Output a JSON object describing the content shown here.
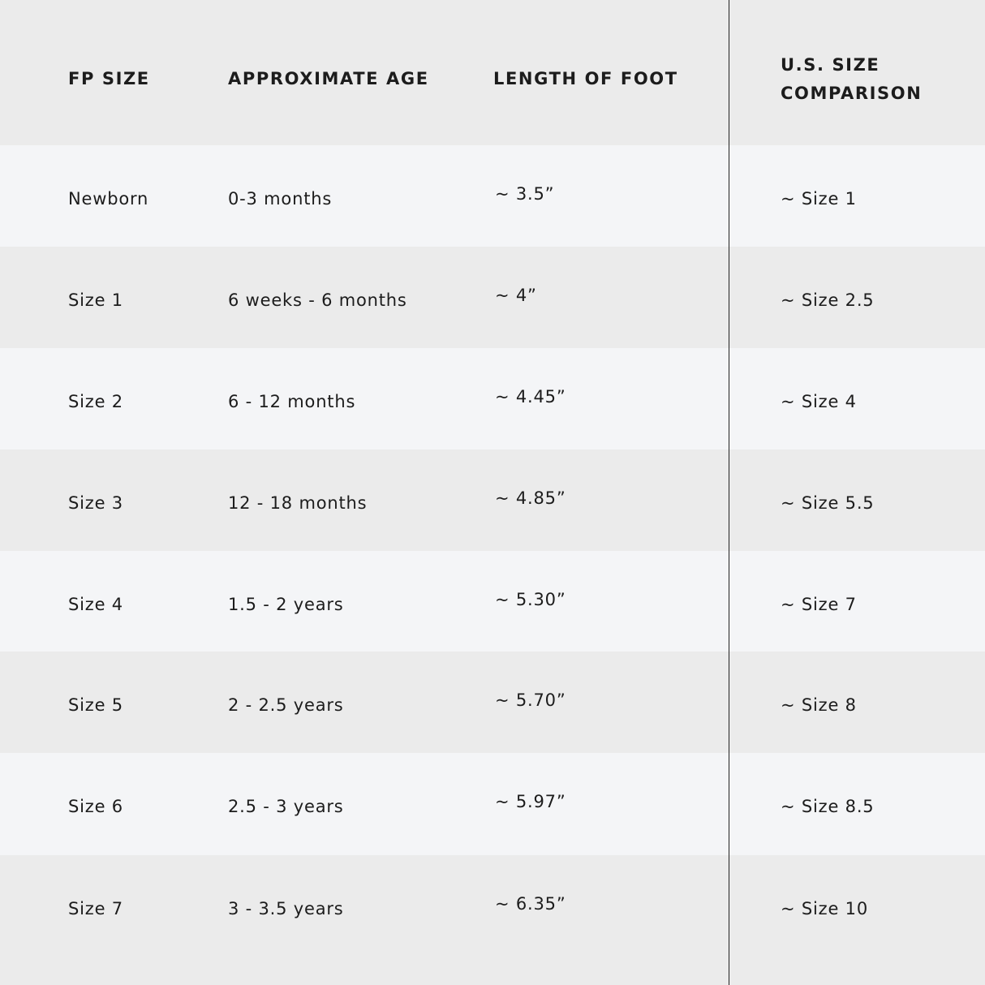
{
  "headers": [
    "FP SIZE",
    "APPROXIMATE AGE",
    "LENGTH OF FOOT",
    "U.S. SIZE",
    "COMPARISON"
  ],
  "rows": [
    {
      "fp_size": "Newborn",
      "age": "0-3 months",
      "length": "~ 3.5”",
      "us_size": "~ Size 1"
    },
    {
      "fp_size": "Size 1",
      "age": "6 weeks - 6 months",
      "length": "~ 4”",
      "us_size": "~ Size 2.5"
    },
    {
      "fp_size": "Size 2",
      "age": "6 - 12 months",
      "length": "~ 4.45”",
      "us_size": "~ Size 4"
    },
    {
      "fp_size": "Size 3",
      "age": "12 - 18 months",
      "length": "~ 4.85”",
      "us_size": "~ Size 5.5"
    },
    {
      "fp_size": "Size 4",
      "age": "1.5 - 2 years",
      "length": "~ 5.30”",
      "us_size": "~ Size 7"
    },
    {
      "fp_size": "Size 5",
      "age": "2 - 2.5 years",
      "length": "~ 5.70”",
      "us_size": "~ Size 8"
    },
    {
      "fp_size": "Size 6",
      "age": "2.5 - 3 years",
      "length": "~ 5.97”",
      "us_size": "~ Size 8.5"
    },
    {
      "fp_size": "Size 7",
      "age": "3 - 3.5 years",
      "length": "~ 6.35”",
      "us_size": "~ Size 10"
    }
  ]
}
